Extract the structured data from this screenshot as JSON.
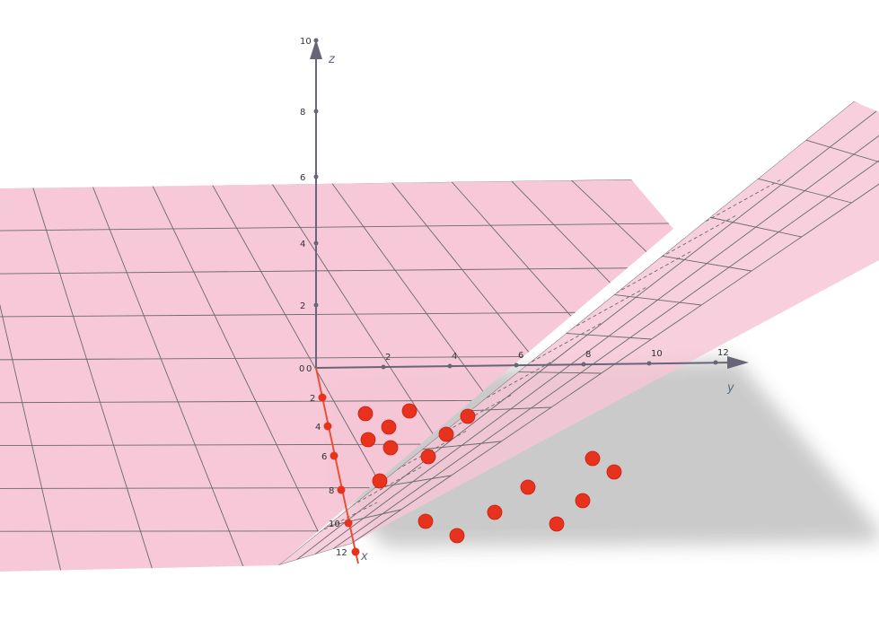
{
  "axes": {
    "x": {
      "name": "x",
      "ticks": [
        "2",
        "4",
        "6",
        "8",
        "10",
        "12"
      ],
      "color": "#e8503a"
    },
    "y": {
      "name": "y",
      "ticks": [
        "0",
        "2",
        "4",
        "6",
        "8",
        "10",
        "12"
      ],
      "color": "#666677"
    },
    "z": {
      "name": "z",
      "ticks": [
        "2",
        "4",
        "6",
        "8",
        "10"
      ],
      "color": "#666677"
    },
    "origin_labels": [
      "0",
      "0"
    ]
  },
  "colors": {
    "plane_fill": "#f7c6d6",
    "grid_line": "#6a6a6a",
    "shadow": "#c8c8c8",
    "points": "#e8321e"
  },
  "points_count_visible": 20
}
